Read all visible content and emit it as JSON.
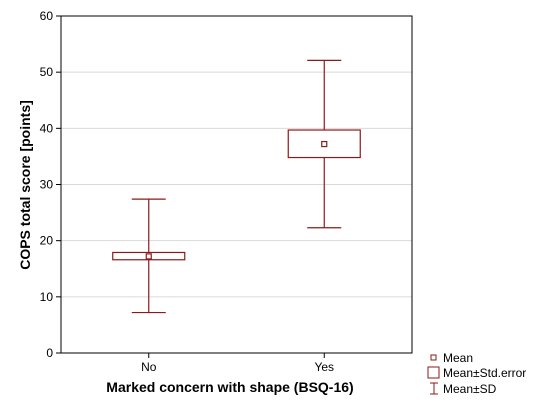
{
  "chart_data": {
    "type": "box",
    "xlabel": "Marked concern with shape (BSQ-16)",
    "ylabel": "COPS total score [points]",
    "ylim": [
      0,
      60
    ],
    "yticks": [
      0,
      10,
      20,
      30,
      40,
      50,
      60
    ],
    "categories": [
      "No",
      "Yes"
    ],
    "grid": true,
    "legend_position": "bottom-right",
    "groups": [
      {
        "category": "No",
        "mean": 17.2,
        "se_low": 16.6,
        "se_high": 17.9,
        "sd_low": 7.2,
        "sd_high": 27.4
      },
      {
        "category": "Yes",
        "mean": 37.2,
        "se_low": 34.8,
        "se_high": 39.7,
        "sd_low": 22.3,
        "sd_high": 52.1
      }
    ],
    "legend": {
      "mean": "Mean",
      "se": "Mean±Std.error",
      "sd": "Mean±SD"
    },
    "color": "#8b1a1a"
  }
}
